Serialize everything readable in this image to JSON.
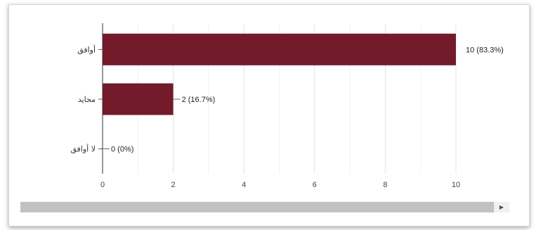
{
  "chart_data": {
    "type": "bar",
    "orientation": "horizontal",
    "categories": [
      "أوافق",
      "محايد",
      "لا أوافق"
    ],
    "values": [
      10,
      2,
      0
    ],
    "data_labels": [
      "10 (83.3%)",
      "2 (16.7%)",
      "0 (0%)"
    ],
    "xlim": [
      0,
      10
    ],
    "xticks": [
      0,
      2,
      4,
      6,
      8,
      10
    ],
    "grid": true,
    "bar_color": "#731a2b"
  },
  "scrollbar": {
    "arrow_icon": "arrow-right-icon"
  }
}
